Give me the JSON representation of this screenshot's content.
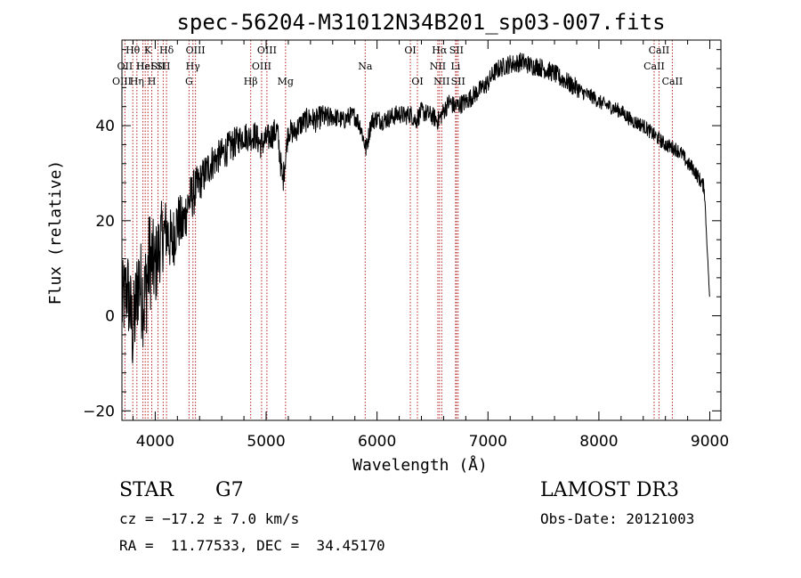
{
  "info": {
    "class": "STAR",
    "subclass": "G7",
    "survey": "LAMOST DR3",
    "redshift": "cz = −17.2 ± 7.0 km/s",
    "obs_date": "Obs-Date: 20121003",
    "coords": "RA =  11.77533, DEC =  34.45170"
  },
  "chart_data": {
    "type": "line",
    "title": "spec-56204-M31012N34B201_sp03-007.fits",
    "xlabel": "Wavelength (Å)",
    "ylabel": "Flux (relative)",
    "xlim": [
      3700,
      9100
    ],
    "ylim": [
      -22,
      58
    ],
    "xticks": [
      4000,
      5000,
      6000,
      7000,
      8000,
      9000
    ],
    "xtick_labels": [
      "4000",
      "5000",
      "6000",
      "7000",
      "8000",
      "9000"
    ],
    "yticks": [
      -20,
      0,
      20,
      40
    ],
    "ytick_labels": [
      "−20",
      "0",
      "20",
      "40"
    ],
    "line_color": "#000000",
    "marker_color": "#b22222",
    "series": [
      {
        "x": [
          3700,
          3750,
          3800,
          3850,
          3900,
          3950,
          4000,
          4050,
          4100,
          4150,
          4200,
          4250,
          4300,
          4350,
          4400,
          4450,
          4500,
          4550,
          4600,
          4650,
          4700,
          4750,
          4800,
          4850,
          4900,
          4950,
          5000,
          5050,
          5100,
          5150,
          5200,
          5250,
          5300,
          5350,
          5400,
          5450,
          5500,
          5550,
          5600,
          5650,
          5700,
          5750,
          5800,
          5850,
          5900,
          5950,
          6000,
          6050,
          6100,
          6150,
          6200,
          6250,
          6300,
          6350,
          6400,
          6450,
          6500,
          6550,
          6600,
          6650,
          6700,
          6750,
          6800,
          6850,
          6900,
          6950,
          7000,
          7050,
          7100,
          7150,
          7200,
          7250,
          7300,
          7350,
          7400,
          7450,
          7500,
          7550,
          7600,
          7650,
          7700,
          7750,
          7800,
          7850,
          7900,
          7950,
          8000,
          8050,
          8100,
          8150,
          8200,
          8250,
          8300,
          8350,
          8400,
          8450,
          8500,
          8550,
          8600,
          8650,
          8700,
          8750,
          8800,
          8850,
          8900,
          8950,
          9000
        ],
        "y": [
          2,
          6,
          -4,
          8,
          3,
          12,
          10,
          16,
          18,
          15,
          20,
          19,
          24,
          26,
          28,
          30,
          32,
          33,
          34,
          35,
          36,
          37,
          38,
          37.5,
          38,
          36,
          37,
          38,
          39,
          28,
          39,
          38.5,
          40,
          41,
          41.5,
          41,
          42,
          41.5,
          42,
          41.5,
          41,
          42,
          42,
          40,
          35,
          41,
          41.5,
          41,
          41.5,
          42,
          42.5,
          42,
          42.5,
          41,
          43,
          42.5,
          42,
          41,
          43,
          45,
          44,
          44.5,
          45,
          46,
          47,
          48,
          49,
          51,
          52,
          52.5,
          53,
          53,
          53.5,
          53,
          52.5,
          52.5,
          52,
          51.5,
          51,
          50,
          49.5,
          48.5,
          48,
          47,
          46.5,
          46,
          45,
          44.5,
          44,
          43.5,
          43,
          42,
          41,
          40.5,
          40,
          39,
          38,
          37,
          36,
          35.5,
          35,
          34,
          32,
          31,
          29,
          27,
          3
        ],
        "noise": [
          9,
          9,
          10,
          10,
          11,
          11,
          9,
          8,
          7,
          7,
          6,
          6,
          5,
          5,
          4,
          4,
          4,
          3.5,
          3.5,
          3.5,
          3.5,
          3,
          3,
          3,
          3,
          3,
          3,
          3,
          3,
          3,
          2.5,
          2.5,
          2.5,
          2.5,
          2.5,
          2.5,
          2.5,
          2.5,
          2,
          2,
          2,
          2,
          2,
          2,
          2,
          2,
          2,
          2,
          2,
          2,
          2,
          2,
          2,
          2,
          2,
          2,
          2,
          2,
          2,
          2,
          2,
          2,
          2,
          2,
          2,
          2,
          2,
          2,
          2,
          2,
          2,
          2,
          2,
          2,
          2,
          2,
          2,
          2,
          2,
          2,
          2,
          2,
          2,
          1.5,
          1.5,
          1.5,
          1.5,
          1.5,
          1.5,
          1.5,
          1.5,
          1.5,
          1.5,
          1.5,
          1.5,
          1.5,
          1.5,
          1.5,
          1.5,
          1.5,
          1.5,
          1.5,
          1.5,
          1.5,
          1.5,
          1.5,
          0
        ]
      }
    ],
    "spectral_lines": [
      {
        "label": "Hθ",
        "wavelength": 3798,
        "row": 0
      },
      {
        "label": "OII",
        "wavelength": 3727,
        "row": 1
      },
      {
        "label": "OIII",
        "wavelength": 3700,
        "row": 2
      },
      {
        "label": "Hη",
        "wavelength": 3835,
        "row": 2
      },
      {
        "label": "Hε",
        "wavelength": 3889,
        "row": 1
      },
      {
        "label": "K",
        "wavelength": 3934,
        "row": 0
      },
      {
        "label": "HeI",
        "wavelength": 3910,
        "row": 1
      },
      {
        "label": "H",
        "wavelength": 3969,
        "row": 2
      },
      {
        "label": "SII",
        "wavelength": 4025,
        "row": 1
      },
      {
        "label": "Hδ",
        "wavelength": 4102,
        "row": 0
      },
      {
        "label": "SII",
        "wavelength": 4072,
        "row": 1
      },
      {
        "label": "OIII",
        "wavelength": 4363,
        "row": 0
      },
      {
        "label": "Hγ",
        "wavelength": 4340,
        "row": 1
      },
      {
        "label": "G",
        "wavelength": 4305,
        "row": 2
      },
      {
        "label": "Hβ",
        "wavelength": 4861,
        "row": 2
      },
      {
        "label": "OIII",
        "wavelength": 5007,
        "row": 0
      },
      {
        "label": "OIII",
        "wavelength": 4959,
        "row": 1
      },
      {
        "label": "Mg",
        "wavelength": 5175,
        "row": 2
      },
      {
        "label": "Na",
        "wavelength": 5893,
        "row": 1
      },
      {
        "label": "OI",
        "wavelength": 6300,
        "row": 0
      },
      {
        "label": "OI",
        "wavelength": 6364,
        "row": 2
      },
      {
        "label": "Hα",
        "wavelength": 6563,
        "row": 0
      },
      {
        "label": "NII",
        "wavelength": 6548,
        "row": 1
      },
      {
        "label": "NII",
        "wavelength": 6583,
        "row": 2
      },
      {
        "label": "SII",
        "wavelength": 6716,
        "row": 0
      },
      {
        "label": "Li",
        "wavelength": 6708,
        "row": 1
      },
      {
        "label": "SII",
        "wavelength": 6731,
        "row": 2
      },
      {
        "label": "CaII",
        "wavelength": 8542,
        "row": 0
      },
      {
        "label": "CaII",
        "wavelength": 8498,
        "row": 1
      },
      {
        "label": "CaII",
        "wavelength": 8662,
        "row": 2
      }
    ]
  }
}
